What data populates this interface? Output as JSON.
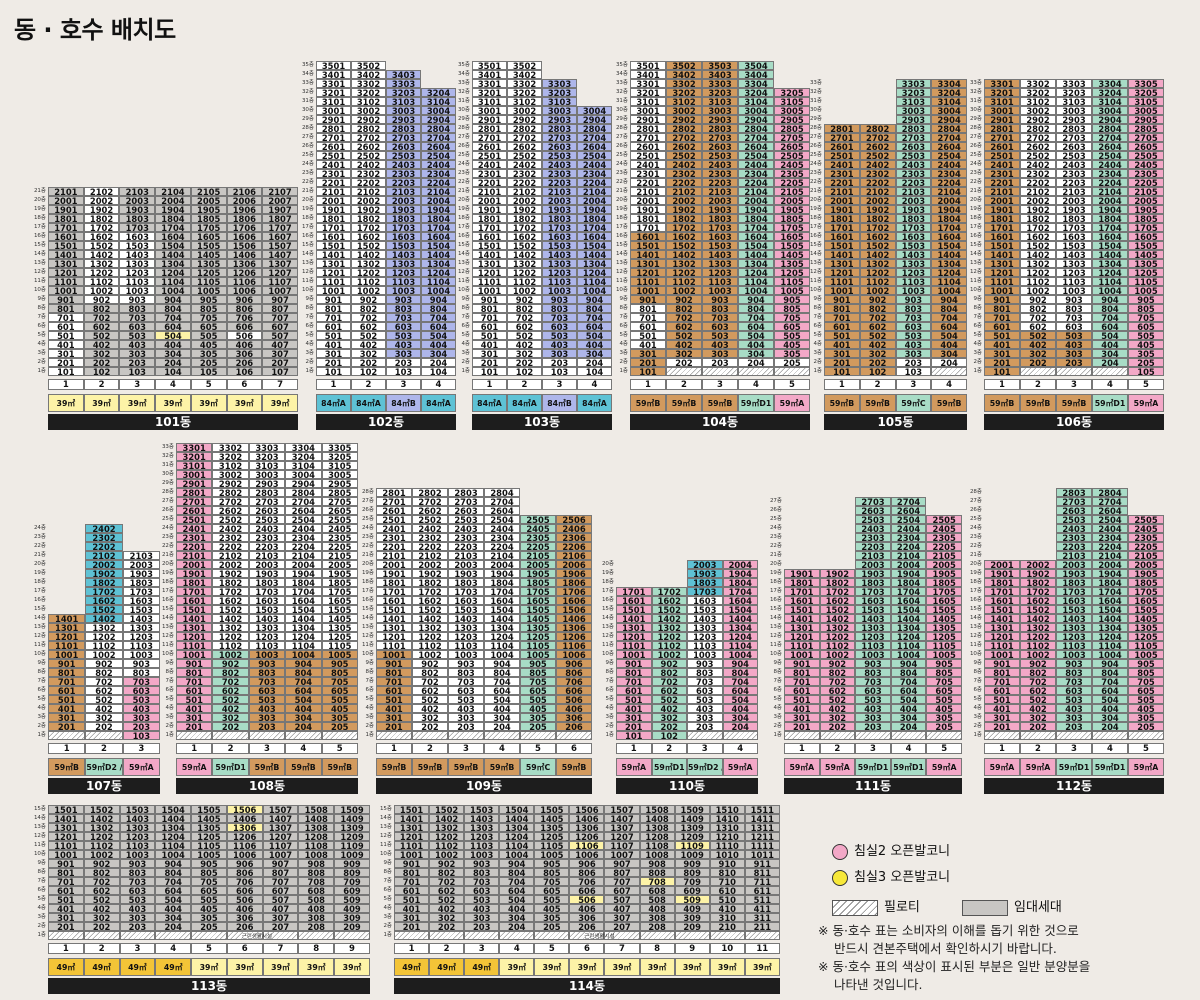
{
  "page": {
    "title": "동 · 호수 배치도"
  },
  "legend": {
    "pink_dot": "침실2 오픈발코니",
    "yellow_dot": "침실3 오픈발코니",
    "piloti": "필로티",
    "rental": "임대세대",
    "pink_color": "#f3a8c7",
    "yellow_color": "#f7e83a",
    "rental_color": "#c8c6c3"
  },
  "notes": [
    "※ 동·호수 표는 소비자의 이해를 돕기 위한 것으로",
    "반드시 견본주택에서 확인하시기 바랍니다.",
    "※ 동·호수 표의 색상이 표시된 부분은 일반 분양분을",
    "나타낸 것입니다."
  ],
  "buildings": [
    {
      "name": "101동",
      "floors": 21,
      "lines": [
        "1",
        "2",
        "3",
        "4",
        "5",
        "6",
        "7"
      ],
      "types": [
        "39㎡",
        "39㎡",
        "39㎡",
        "39㎡",
        "39㎡",
        "39㎡",
        "39㎡"
      ]
    },
    {
      "name": "102동",
      "floors": 35,
      "lines": [
        "1",
        "2",
        "3",
        "4"
      ],
      "types": [
        "84㎡A",
        "84㎡A",
        "84㎡B",
        "84㎡A"
      ]
    },
    {
      "name": "103동",
      "floors": 35,
      "lines": [
        "1",
        "2",
        "3",
        "4"
      ],
      "types": [
        "84㎡A",
        "84㎡A",
        "84㎡B",
        "84㎡A"
      ]
    },
    {
      "name": "104동",
      "floors": 35,
      "lines": [
        "1",
        "2",
        "3",
        "4",
        "5"
      ],
      "types": [
        "59㎡B",
        "59㎡B",
        "59㎡B",
        "59㎡D1",
        "59㎡A"
      ]
    },
    {
      "name": "105동",
      "floors": 33,
      "lines": [
        "1",
        "2",
        "3",
        "4"
      ],
      "types": [
        "59㎡B",
        "59㎡B",
        "59㎡C",
        "59㎡B"
      ]
    },
    {
      "name": "106동",
      "floors": 33,
      "lines": [
        "1",
        "2",
        "3",
        "4",
        "5"
      ],
      "types": [
        "59㎡B",
        "59㎡B",
        "59㎡B",
        "59㎡D1",
        "59㎡A"
      ]
    },
    {
      "name": "107동",
      "floors": 24,
      "lines": [
        "1",
        "2",
        "3"
      ],
      "types": [
        "59㎡B",
        "59㎡D2 / 59㎡D1",
        "59㎡A"
      ]
    },
    {
      "name": "108동",
      "floors": 33,
      "lines": [
        "1",
        "2",
        "3",
        "4",
        "5"
      ],
      "types": [
        "59㎡A",
        "59㎡D1",
        "59㎡B",
        "59㎡B",
        "59㎡B"
      ]
    },
    {
      "name": "109동",
      "floors": 28,
      "lines": [
        "1",
        "2",
        "3",
        "4",
        "5",
        "6"
      ],
      "types": [
        "59㎡B",
        "59㎡B",
        "59㎡B",
        "59㎡B",
        "59㎡C",
        "59㎡B"
      ]
    },
    {
      "name": "110동",
      "floors": 20,
      "lines": [
        "1",
        "2",
        "3",
        "4"
      ],
      "types": [
        "59㎡A",
        "59㎡D1",
        "59㎡D2 / 59㎡D1",
        "59㎡A"
      ]
    },
    {
      "name": "111동",
      "floors": 27,
      "lines": [
        "1",
        "2",
        "3",
        "4",
        "5"
      ],
      "types": [
        "59㎡A",
        "59㎡A",
        "59㎡D1",
        "59㎡D1",
        "59㎡A"
      ]
    },
    {
      "name": "112동",
      "floors": 28,
      "lines": [
        "1",
        "2",
        "3",
        "4",
        "5"
      ],
      "types": [
        "59㎡A",
        "59㎡A",
        "59㎡D1",
        "59㎡D1",
        "59㎡A"
      ]
    },
    {
      "name": "113동",
      "floors": 15,
      "lines": [
        "1",
        "2",
        "3",
        "4",
        "5",
        "6",
        "7",
        "8",
        "9"
      ],
      "types": [
        "49㎡",
        "49㎡",
        "49㎡",
        "49㎡",
        "39㎡",
        "39㎡",
        "39㎡",
        "39㎡",
        "39㎡"
      ],
      "facility": "근린생활시설"
    },
    {
      "name": "114동",
      "floors": 15,
      "lines": [
        "1",
        "2",
        "3",
        "4",
        "5",
        "6",
        "7",
        "8",
        "9",
        "10",
        "11"
      ],
      "types": [
        "49㎡",
        "49㎡",
        "49㎡",
        "39㎡",
        "39㎡",
        "39㎡",
        "39㎡",
        "39㎡",
        "39㎡",
        "39㎡",
        "39㎡"
      ],
      "facility": "근린생활시설"
    }
  ]
}
